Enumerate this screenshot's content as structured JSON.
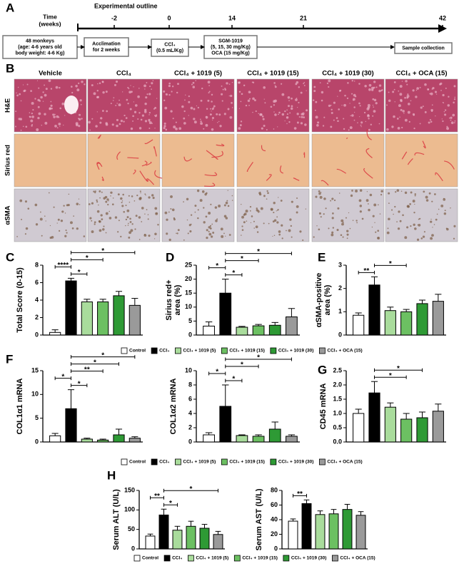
{
  "panel_letters": [
    "A",
    "B",
    "C",
    "D",
    "E",
    "F",
    "G",
    "H"
  ],
  "outline": {
    "title": "Experimental outline",
    "time_label": [
      "Time",
      "(weeks)"
    ],
    "ticks": [
      -2,
      0,
      14,
      21,
      42
    ],
    "boxes": [
      [
        "48 monkeys",
        "(age: 4-6 years old",
        "body weight: 4-6 Kg)"
      ],
      [
        "Acclimation",
        "for 2 weeks"
      ],
      [
        "CCl₄",
        "(0.5 mL/Kg)"
      ],
      [
        "SGM-1019",
        "(5, 15, 30 mg/Kg)",
        "OCA (15 mg/Kg)"
      ],
      [
        "Sample collection"
      ]
    ]
  },
  "histology": {
    "columns": [
      "Vehicle",
      "CCl₄",
      "CCl₄ + 1019 (5)",
      "CCl₄ + 1019 (15)",
      "CCl₄ + 1019 (30)",
      "CCl₄ + OCA (15)"
    ],
    "rows": [
      "H&E",
      "Sirius red",
      "αSMA"
    ]
  },
  "legends": [
    {
      "names": [
        "Control",
        "CCl₄",
        "CCl₄ + 1019 (5)",
        "CCl₄ + 1019 (15)",
        "CCl₄ + 1019 (30)",
        "CCl₄ + OCA (15)"
      ],
      "colors": [
        "#ffffff",
        "#000000",
        "#a9dc9c",
        "#6cc062",
        "#2e9a35",
        "#9a9a9a"
      ]
    },
    {
      "names": [
        "Control",
        "CCl₄",
        "CCl₄ + 1019 (5)",
        "CCl₄ + 1019 (15)",
        "CCl₄ + 1019 (30)",
        "CCl₄ + OCA (15)"
      ],
      "colors": [
        "#ffffff",
        "#000000",
        "#a9dc9c",
        "#6cc062",
        "#2e9a35",
        "#9a9a9a"
      ]
    },
    {
      "names": [
        "Control",
        "CCl₄",
        "CCl₄ + 1019 (5)",
        "CCl₄ + 1019 (15)",
        "CCl₄ + 1019 (30)",
        "CCl₄ + OCA (15)"
      ],
      "colors": [
        "#ffffff",
        "#000000",
        "#a9dc9c",
        "#6cc062",
        "#2e9a35",
        "#9a9a9a"
      ]
    }
  ],
  "chart_data": [
    {
      "type": "bar",
      "ylabel": [
        "Total Score (0-15)"
      ],
      "categories": [
        null,
        null,
        null,
        null,
        null,
        null
      ],
      "values": [
        0.3,
        6.2,
        3.8,
        3.8,
        4.5,
        3.4
      ],
      "errors": [
        0.3,
        0.3,
        0.3,
        0.3,
        0.5,
        0.8
      ],
      "colors": [
        "#ffffff",
        "#000000",
        "#a9dc9c",
        "#6cc062",
        "#2e9a35",
        "#9a9a9a"
      ],
      "ylim": [
        0,
        8
      ],
      "yticks": [
        0,
        2,
        4,
        6,
        8
      ],
      "brackets": [
        {
          "between": [
            1,
            2
          ],
          "label": "*"
        },
        {
          "between": [
            0,
            1
          ],
          "label": "****"
        },
        {
          "between": [
            1,
            3
          ],
          "label": "*"
        },
        {
          "between": [
            1,
            5
          ],
          "label": "*"
        }
      ]
    },
    {
      "type": "bar",
      "ylabel": [
        "Sirius red+",
        "area (%)"
      ],
      "categories": [
        null,
        null,
        null,
        null,
        null,
        null
      ],
      "values": [
        3.2,
        15,
        2.8,
        3.3,
        3.5,
        6.5
      ],
      "errors": [
        1.5,
        5,
        0.3,
        0.5,
        1,
        3
      ],
      "colors": [
        "#ffffff",
        "#000000",
        "#a9dc9c",
        "#6cc062",
        "#2e9a35",
        "#9a9a9a"
      ],
      "ylim": [
        0,
        25
      ],
      "yticks": [
        0,
        5,
        10,
        15,
        20,
        25
      ],
      "brackets": [
        {
          "between": [
            1,
            2
          ],
          "label": "*"
        },
        {
          "between": [
            0,
            1
          ],
          "label": "*"
        },
        {
          "between": [
            1,
            3
          ],
          "label": "*"
        },
        {
          "between": [
            1,
            5
          ],
          "label": "*"
        }
      ]
    },
    {
      "type": "bar",
      "ylabel": [
        "αSMA-positive",
        "area (%)"
      ],
      "categories": [
        null,
        null,
        null,
        null,
        null,
        null
      ],
      "values": [
        0.85,
        2.15,
        1.05,
        1.0,
        1.35,
        1.45
      ],
      "errors": [
        0.1,
        0.35,
        0.15,
        0.1,
        0.15,
        0.3
      ],
      "colors": [
        "#ffffff",
        "#000000",
        "#a9dc9c",
        "#6cc062",
        "#2e9a35",
        "#9a9a9a"
      ],
      "ylim": [
        0,
        3
      ],
      "yticks": [
        0,
        1,
        2,
        3
      ],
      "brackets": [
        {
          "between": [
            0,
            1
          ],
          "label": "**"
        },
        {
          "between": [
            1,
            3
          ],
          "label": "*"
        }
      ]
    },
    {
      "type": "bar",
      "ylabel": [
        "COL1α1 mRNA"
      ],
      "categories": [
        null,
        null,
        null,
        null,
        null,
        null
      ],
      "values": [
        1.3,
        7,
        0.6,
        0.4,
        1.5,
        0.8
      ],
      "errors": [
        0.5,
        4,
        0.2,
        0.2,
        1.2,
        0.3
      ],
      "colors": [
        "#ffffff",
        "#000000",
        "#a9dc9c",
        "#6cc062",
        "#2e9a35",
        "#9a9a9a"
      ],
      "ylim": [
        0,
        15
      ],
      "yticks": [
        0,
        5,
        10,
        15
      ],
      "brackets": [
        {
          "between": [
            1,
            2
          ],
          "label": "*"
        },
        {
          "between": [
            0,
            1
          ],
          "label": "*"
        },
        {
          "between": [
            1,
            3
          ],
          "label": "**"
        },
        {
          "between": [
            1,
            4
          ],
          "label": "*"
        },
        {
          "between": [
            1,
            5
          ],
          "label": "*"
        }
      ]
    },
    {
      "type": "bar",
      "ylabel": [
        "COL1α2 mRNA"
      ],
      "categories": [
        null,
        null,
        null,
        null,
        null,
        null
      ],
      "values": [
        1.0,
        5,
        0.9,
        0.8,
        1.8,
        0.8
      ],
      "errors": [
        0.3,
        3,
        0.1,
        0.2,
        1,
        0.2
      ],
      "colors": [
        "#ffffff",
        "#000000",
        "#a9dc9c",
        "#6cc062",
        "#2e9a35",
        "#9a9a9a"
      ],
      "ylim": [
        0,
        10
      ],
      "yticks": [
        0,
        2,
        4,
        6,
        8,
        10
      ],
      "brackets": [
        {
          "between": [
            1,
            2
          ],
          "label": "*"
        },
        {
          "between": [
            0,
            1
          ],
          "label": "*"
        },
        {
          "between": [
            1,
            3
          ],
          "label": "*"
        },
        {
          "between": [
            1,
            5
          ],
          "label": "*"
        }
      ]
    },
    {
      "type": "bar",
      "ylabel": [
        "CD45 mRNA"
      ],
      "categories": [
        null,
        null,
        null,
        null,
        null,
        null
      ],
      "values": [
        1.0,
        1.72,
        1.22,
        0.8,
        0.85,
        1.08
      ],
      "errors": [
        0.15,
        0.4,
        0.15,
        0.2,
        0.2,
        0.25
      ],
      "colors": [
        "#ffffff",
        "#000000",
        "#a9dc9c",
        "#6cc062",
        "#2e9a35",
        "#9a9a9a"
      ],
      "ylim": [
        0,
        2.5
      ],
      "yticks": [
        {
          "value": 0,
          "label": "0.0"
        },
        {
          "value": 0.5,
          "label": "0.5"
        },
        {
          "value": 1,
          "label": "1.0"
        },
        {
          "value": 1.5,
          "label": "1.5"
        },
        {
          "value": 2,
          "label": "2.0"
        },
        {
          "value": 2.5,
          "label": "2.5"
        }
      ],
      "brackets": [
        {
          "between": [
            1,
            3
          ],
          "label": "*"
        },
        {
          "between": [
            1,
            4
          ],
          "label": "*"
        }
      ]
    },
    {
      "type": "bar",
      "ylabel": [
        "Serum ALT (U/L)"
      ],
      "categories": [
        null,
        null,
        null,
        null,
        null,
        null
      ],
      "values": [
        33,
        87,
        48,
        58,
        53,
        37
      ],
      "errors": [
        5,
        15,
        10,
        13,
        10,
        8
      ],
      "colors": [
        "#ffffff",
        "#000000",
        "#a9dc9c",
        "#6cc062",
        "#2e9a35",
        "#9a9a9a"
      ],
      "ylim": [
        0,
        150
      ],
      "yticks": [
        0,
        50,
        100,
        150
      ],
      "brackets": [
        {
          "between": [
            1,
            2
          ],
          "label": "*"
        },
        {
          "between": [
            0,
            1
          ],
          "label": "**"
        },
        {
          "between": [
            1,
            5
          ],
          "label": "*"
        }
      ]
    },
    {
      "type": "bar",
      "ylabel": [
        "Serum AST (U/L)"
      ],
      "categories": [
        null,
        null,
        null,
        null,
        null,
        null
      ],
      "values": [
        38,
        62,
        47,
        48,
        54,
        46
      ],
      "errors": [
        3,
        5,
        5,
        6,
        7,
        5
      ],
      "colors": [
        "#ffffff",
        "#000000",
        "#a9dc9c",
        "#6cc062",
        "#2e9a35",
        "#9a9a9a"
      ],
      "ylim": [
        0,
        80
      ],
      "yticks": [
        0,
        20,
        40,
        60,
        80
      ],
      "brackets": [
        {
          "between": [
            0,
            1
          ],
          "label": "**"
        }
      ]
    }
  ]
}
